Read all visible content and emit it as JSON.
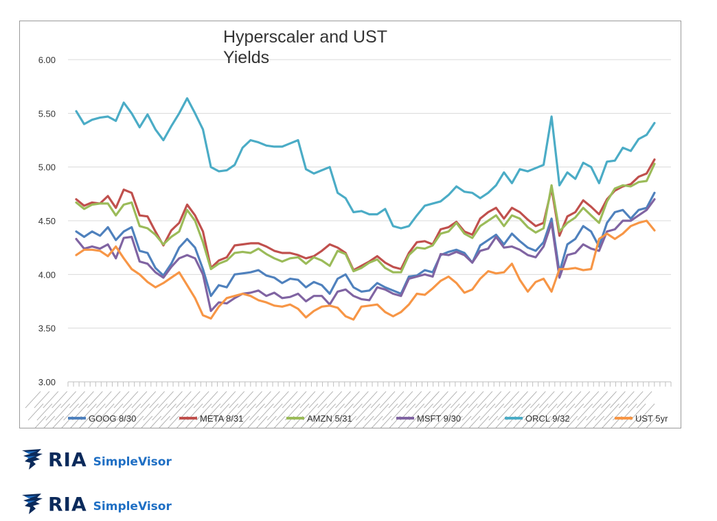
{
  "chart_data": {
    "type": "line",
    "title_lines": [
      "Hyperscaler and UST",
      "Yields"
    ],
    "ylim": [
      3.0,
      6.0
    ],
    "yticks": [
      "3.00",
      "3.50",
      "4.00",
      "4.50",
      "5.00",
      "5.50",
      "6.00"
    ],
    "ytick_values": [
      3.0,
      3.5,
      4.0,
      4.5,
      5.0,
      5.5,
      6.0
    ],
    "grid": true,
    "legend": "bottom",
    "series": [
      {
        "name": "GOOG 8/30",
        "color": "#4f81bd",
        "values": [
          4.4,
          4.35,
          4.4,
          4.36,
          4.44,
          4.32,
          4.4,
          4.44,
          4.22,
          4.2,
          4.06,
          3.99,
          4.1,
          4.25,
          4.33,
          4.25,
          4.05,
          3.8,
          3.9,
          3.88,
          4.0,
          4.01,
          4.02,
          4.04,
          3.99,
          3.97,
          3.92,
          3.96,
          3.95,
          3.88,
          3.93,
          3.9,
          3.82,
          3.96,
          4.0,
          3.88,
          3.84,
          3.85,
          3.92,
          3.88,
          3.85,
          3.82,
          3.98,
          3.99,
          4.04,
          4.02,
          4.18,
          4.21,
          4.23,
          4.2,
          4.11,
          4.27,
          4.32,
          4.37,
          4.28,
          4.38,
          4.31,
          4.25,
          4.22,
          4.3,
          4.52,
          4.02,
          4.28,
          4.33,
          4.45,
          4.4,
          4.26,
          4.48,
          4.58,
          4.6,
          4.52,
          4.6,
          4.62,
          4.76
        ]
      },
      {
        "name": "META 8/31",
        "color": "#c0504d",
        "values": [
          4.7,
          4.64,
          4.67,
          4.66,
          4.73,
          4.62,
          4.79,
          4.76,
          4.55,
          4.54,
          4.4,
          4.27,
          4.41,
          4.48,
          4.65,
          4.55,
          4.4,
          4.06,
          4.13,
          4.16,
          4.27,
          4.28,
          4.29,
          4.29,
          4.26,
          4.22,
          4.2,
          4.2,
          4.18,
          4.15,
          4.17,
          4.22,
          4.28,
          4.25,
          4.2,
          4.04,
          4.08,
          4.12,
          4.17,
          4.11,
          4.07,
          4.05,
          4.2,
          4.3,
          4.31,
          4.28,
          4.42,
          4.44,
          4.49,
          4.4,
          4.37,
          4.52,
          4.58,
          4.62,
          4.52,
          4.62,
          4.58,
          4.51,
          4.45,
          4.48,
          4.8,
          4.36,
          4.54,
          4.58,
          4.69,
          4.63,
          4.56,
          4.7,
          4.78,
          4.82,
          4.84,
          4.91,
          4.94,
          5.07
        ]
      },
      {
        "name": "AMZN 5/31",
        "color": "#9bbb59",
        "values": [
          4.67,
          4.61,
          4.65,
          4.66,
          4.66,
          4.55,
          4.65,
          4.67,
          4.45,
          4.43,
          4.37,
          4.28,
          4.35,
          4.4,
          4.6,
          4.5,
          4.3,
          4.05,
          4.1,
          4.13,
          4.2,
          4.21,
          4.2,
          4.24,
          4.19,
          4.15,
          4.12,
          4.15,
          4.16,
          4.1,
          4.16,
          4.13,
          4.08,
          4.22,
          4.19,
          4.03,
          4.06,
          4.11,
          4.14,
          4.06,
          4.02,
          4.02,
          4.18,
          4.25,
          4.24,
          4.27,
          4.38,
          4.4,
          4.48,
          4.38,
          4.34,
          4.45,
          4.5,
          4.55,
          4.45,
          4.55,
          4.52,
          4.44,
          4.39,
          4.43,
          4.83,
          4.4,
          4.48,
          4.53,
          4.62,
          4.55,
          4.48,
          4.68,
          4.8,
          4.83,
          4.82,
          4.86,
          4.87,
          5.03
        ]
      },
      {
        "name": "MSFT 9/30",
        "color": "#8064a2",
        "values": [
          4.33,
          4.24,
          4.26,
          4.24,
          4.28,
          4.15,
          4.34,
          4.35,
          4.12,
          4.1,
          4.02,
          3.97,
          4.07,
          4.15,
          4.18,
          4.15,
          4.0,
          3.66,
          3.74,
          3.73,
          3.78,
          3.82,
          3.83,
          3.85,
          3.8,
          3.83,
          3.78,
          3.79,
          3.82,
          3.75,
          3.8,
          3.8,
          3.72,
          3.84,
          3.86,
          3.8,
          3.77,
          3.76,
          3.88,
          3.86,
          3.82,
          3.8,
          3.96,
          3.98,
          4.0,
          3.98,
          4.19,
          4.18,
          4.21,
          4.18,
          4.11,
          4.22,
          4.24,
          4.35,
          4.25,
          4.26,
          4.23,
          4.18,
          4.16,
          4.26,
          4.48,
          3.97,
          4.18,
          4.2,
          4.28,
          4.24,
          4.22,
          4.4,
          4.42,
          4.5,
          4.5,
          4.55,
          4.6,
          4.7
        ]
      },
      {
        "name": "ORCL 9/32",
        "color": "#4bacc6",
        "values": [
          5.52,
          5.4,
          5.44,
          5.46,
          5.47,
          5.43,
          5.6,
          5.5,
          5.37,
          5.49,
          5.35,
          5.25,
          5.38,
          5.5,
          5.64,
          5.5,
          5.35,
          5.0,
          4.96,
          4.97,
          5.02,
          5.18,
          5.25,
          5.23,
          5.2,
          5.19,
          5.19,
          5.22,
          5.25,
          4.98,
          4.94,
          4.97,
          5.0,
          4.76,
          4.71,
          4.58,
          4.59,
          4.56,
          4.56,
          4.61,
          4.45,
          4.43,
          4.45,
          4.55,
          4.64,
          4.66,
          4.68,
          4.74,
          4.82,
          4.77,
          4.76,
          4.71,
          4.76,
          4.83,
          4.95,
          4.85,
          4.98,
          4.96,
          4.99,
          5.02,
          5.47,
          4.83,
          4.95,
          4.89,
          5.04,
          5.0,
          4.85,
          5.05,
          5.06,
          5.18,
          5.15,
          5.26,
          5.3,
          5.41
        ]
      },
      {
        "name": "UST 5yr",
        "color": "#f79646",
        "values": [
          4.18,
          4.23,
          4.23,
          4.22,
          4.17,
          4.26,
          4.15,
          4.05,
          4.0,
          3.93,
          3.88,
          3.92,
          3.97,
          4.02,
          3.9,
          3.78,
          3.62,
          3.59,
          3.7,
          3.78,
          3.8,
          3.82,
          3.8,
          3.76,
          3.74,
          3.71,
          3.7,
          3.72,
          3.68,
          3.6,
          3.66,
          3.7,
          3.71,
          3.69,
          3.61,
          3.58,
          3.7,
          3.71,
          3.72,
          3.65,
          3.61,
          3.65,
          3.72,
          3.82,
          3.81,
          3.87,
          3.94,
          3.98,
          3.92,
          3.83,
          3.86,
          3.96,
          4.03,
          4.01,
          4.02,
          4.1,
          3.95,
          3.84,
          3.93,
          3.96,
          3.84,
          4.05,
          4.05,
          4.06,
          4.04,
          4.05,
          4.33,
          4.38,
          4.33,
          4.38,
          4.45,
          4.48,
          4.5,
          4.41
        ]
      }
    ]
  },
  "logos": [
    {
      "word": "RIA",
      "sub": "SimpleVisor",
      "mark": "eagle-icon"
    },
    {
      "word": "RIA",
      "sub": "SimpleVisor",
      "mark": "eagle-icon"
    }
  ],
  "colors": {
    "navy": "#0b2a5b",
    "blue": "#1f6fc4",
    "grid": "#d9d9d9"
  }
}
